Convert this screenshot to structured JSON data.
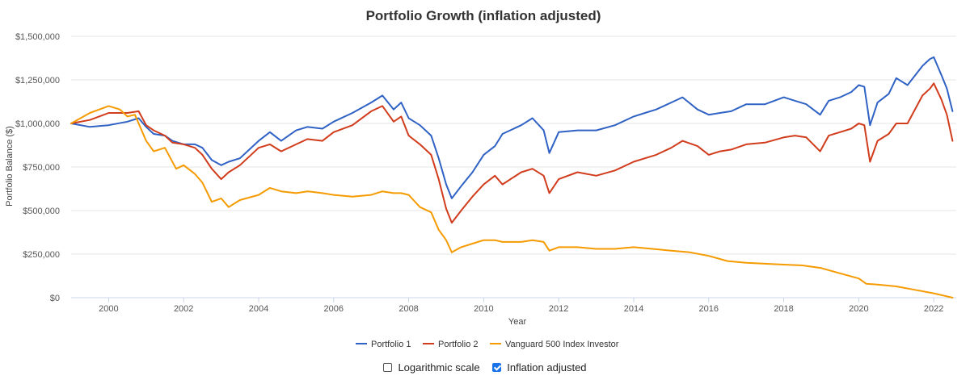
{
  "chart_data": {
    "type": "line",
    "title": "Portfolio Growth (inflation adjusted)",
    "xlabel": "Year",
    "ylabel": "Portfolio Balance ($)",
    "xlim": [
      1999.0,
      2022.6
    ],
    "ylim": [
      0,
      1500000
    ],
    "x_ticks": [
      2000,
      2002,
      2004,
      2006,
      2008,
      2010,
      2012,
      2014,
      2016,
      2018,
      2020,
      2022
    ],
    "y_ticks": [
      0,
      250000,
      500000,
      750000,
      1000000,
      1250000,
      1500000
    ],
    "y_tick_labels": [
      "$0",
      "$250,000",
      "$500,000",
      "$750,000",
      "$1,000,000",
      "$1,250,000",
      "$1,500,000"
    ],
    "grid": true,
    "legend_position": "bottom-center",
    "series": [
      {
        "name": "Portfolio 1",
        "color": "#2f62c4",
        "x": [
          1999.0,
          1999.5,
          2000.0,
          2000.5,
          2000.8,
          2001.0,
          2001.2,
          2001.5,
          2001.7,
          2002.0,
          2002.3,
          2002.5,
          2002.75,
          2003.0,
          2003.2,
          2003.5,
          2004.0,
          2004.3,
          2004.6,
          2005.0,
          2005.3,
          2005.7,
          2006.0,
          2006.5,
          2007.0,
          2007.3,
          2007.6,
          2007.8,
          2008.0,
          2008.3,
          2008.6,
          2008.8,
          2009.0,
          2009.15,
          2009.4,
          2009.7,
          2010.0,
          2010.3,
          2010.5,
          2011.0,
          2011.3,
          2011.6,
          2011.75,
          2012.0,
          2012.5,
          2013.0,
          2013.5,
          2014.0,
          2014.3,
          2014.6,
          2015.0,
          2015.3,
          2015.7,
          2016.0,
          2016.3,
          2016.6,
          2017.0,
          2017.5,
          2018.0,
          2018.3,
          2018.6,
          2018.97,
          2019.2,
          2019.5,
          2019.8,
          2020.0,
          2020.15,
          2020.3,
          2020.5,
          2020.8,
          2021.0,
          2021.3,
          2021.7,
          2021.9,
          2022.0,
          2022.2,
          2022.35,
          2022.5
        ],
        "values": [
          1000000,
          980000,
          990000,
          1010000,
          1030000,
          980000,
          940000,
          930000,
          900000,
          880000,
          880000,
          860000,
          790000,
          760000,
          780000,
          800000,
          900000,
          950000,
          900000,
          960000,
          980000,
          970000,
          1010000,
          1060000,
          1120000,
          1160000,
          1080000,
          1120000,
          1030000,
          990000,
          930000,
          800000,
          650000,
          570000,
          640000,
          720000,
          820000,
          870000,
          940000,
          990000,
          1030000,
          960000,
          830000,
          950000,
          960000,
          960000,
          990000,
          1040000,
          1060000,
          1080000,
          1120000,
          1150000,
          1080000,
          1050000,
          1060000,
          1070000,
          1110000,
          1110000,
          1150000,
          1130000,
          1110000,
          1050000,
          1130000,
          1150000,
          1180000,
          1220000,
          1210000,
          990000,
          1120000,
          1170000,
          1260000,
          1220000,
          1330000,
          1370000,
          1380000,
          1280000,
          1200000,
          1070000
        ]
      },
      {
        "name": "Portfolio 2",
        "color": "#d13c1c",
        "x": [
          1999.0,
          1999.5,
          2000.0,
          2000.5,
          2000.8,
          2001.0,
          2001.2,
          2001.5,
          2001.7,
          2002.0,
          2002.3,
          2002.5,
          2002.75,
          2003.0,
          2003.2,
          2003.5,
          2004.0,
          2004.3,
          2004.6,
          2005.0,
          2005.3,
          2005.7,
          2006.0,
          2006.5,
          2007.0,
          2007.3,
          2007.6,
          2007.8,
          2008.0,
          2008.3,
          2008.6,
          2008.8,
          2009.0,
          2009.15,
          2009.4,
          2009.7,
          2010.0,
          2010.3,
          2010.5,
          2011.0,
          2011.3,
          2011.6,
          2011.75,
          2012.0,
          2012.5,
          2013.0,
          2013.5,
          2014.0,
          2014.3,
          2014.6,
          2015.0,
          2015.3,
          2015.7,
          2016.0,
          2016.3,
          2016.6,
          2017.0,
          2017.5,
          2018.0,
          2018.3,
          2018.6,
          2018.97,
          2019.2,
          2019.5,
          2019.8,
          2020.0,
          2020.15,
          2020.3,
          2020.5,
          2020.8,
          2021.0,
          2021.3,
          2021.7,
          2021.9,
          2022.0,
          2022.2,
          2022.35,
          2022.5
        ],
        "values": [
          1000000,
          1020000,
          1060000,
          1060000,
          1070000,
          990000,
          960000,
          930000,
          890000,
          880000,
          860000,
          820000,
          740000,
          680000,
          720000,
          760000,
          860000,
          880000,
          840000,
          880000,
          910000,
          900000,
          950000,
          990000,
          1070000,
          1100000,
          1010000,
          1040000,
          930000,
          880000,
          820000,
          680000,
          510000,
          430000,
          500000,
          580000,
          650000,
          700000,
          650000,
          720000,
          740000,
          700000,
          600000,
          680000,
          720000,
          700000,
          730000,
          780000,
          800000,
          820000,
          860000,
          900000,
          870000,
          820000,
          840000,
          850000,
          880000,
          890000,
          920000,
          930000,
          920000,
          840000,
          930000,
          950000,
          970000,
          1000000,
          990000,
          780000,
          900000,
          940000,
          1000000,
          1000000,
          1160000,
          1200000,
          1230000,
          1140000,
          1050000,
          900000
        ]
      },
      {
        "name": "Vanguard 500 Index Investor",
        "color": "#f59b00",
        "x": [
          1999.0,
          1999.5,
          2000.0,
          2000.3,
          2000.5,
          2000.7,
          2001.0,
          2001.2,
          2001.5,
          2001.8,
          2002.0,
          2002.3,
          2002.5,
          2002.75,
          2003.0,
          2003.2,
          2003.5,
          2004.0,
          2004.3,
          2004.6,
          2005.0,
          2005.3,
          2005.7,
          2006.0,
          2006.5,
          2007.0,
          2007.3,
          2007.6,
          2007.8,
          2008.0,
          2008.3,
          2008.6,
          2008.8,
          2009.0,
          2009.15,
          2009.4,
          2009.7,
          2010.0,
          2010.3,
          2010.5,
          2011.0,
          2011.3,
          2011.6,
          2011.75,
          2012.0,
          2012.5,
          2013.0,
          2013.5,
          2014.0,
          2014.5,
          2015.0,
          2015.5,
          2016.0,
          2016.5,
          2017.0,
          2017.5,
          2018.0,
          2018.5,
          2019.0,
          2019.5,
          2020.0,
          2020.2,
          2020.5,
          2021.0,
          2021.5,
          2022.0,
          2022.3,
          2022.5
        ],
        "values": [
          1000000,
          1060000,
          1100000,
          1080000,
          1040000,
          1050000,
          900000,
          840000,
          860000,
          740000,
          760000,
          710000,
          660000,
          550000,
          570000,
          520000,
          560000,
          590000,
          630000,
          610000,
          600000,
          610000,
          600000,
          590000,
          580000,
          590000,
          610000,
          600000,
          600000,
          590000,
          520000,
          490000,
          390000,
          330000,
          260000,
          290000,
          310000,
          330000,
          330000,
          320000,
          320000,
          330000,
          320000,
          270000,
          290000,
          290000,
          280000,
          280000,
          290000,
          280000,
          270000,
          260000,
          240000,
          210000,
          200000,
          195000,
          190000,
          185000,
          170000,
          140000,
          110000,
          80000,
          75000,
          65000,
          45000,
          25000,
          10000,
          0
        ]
      }
    ]
  },
  "options": {
    "logarithmic_label": "Logarithmic scale",
    "logarithmic_checked": false,
    "inflation_label": "Inflation adjusted",
    "inflation_checked": true
  }
}
